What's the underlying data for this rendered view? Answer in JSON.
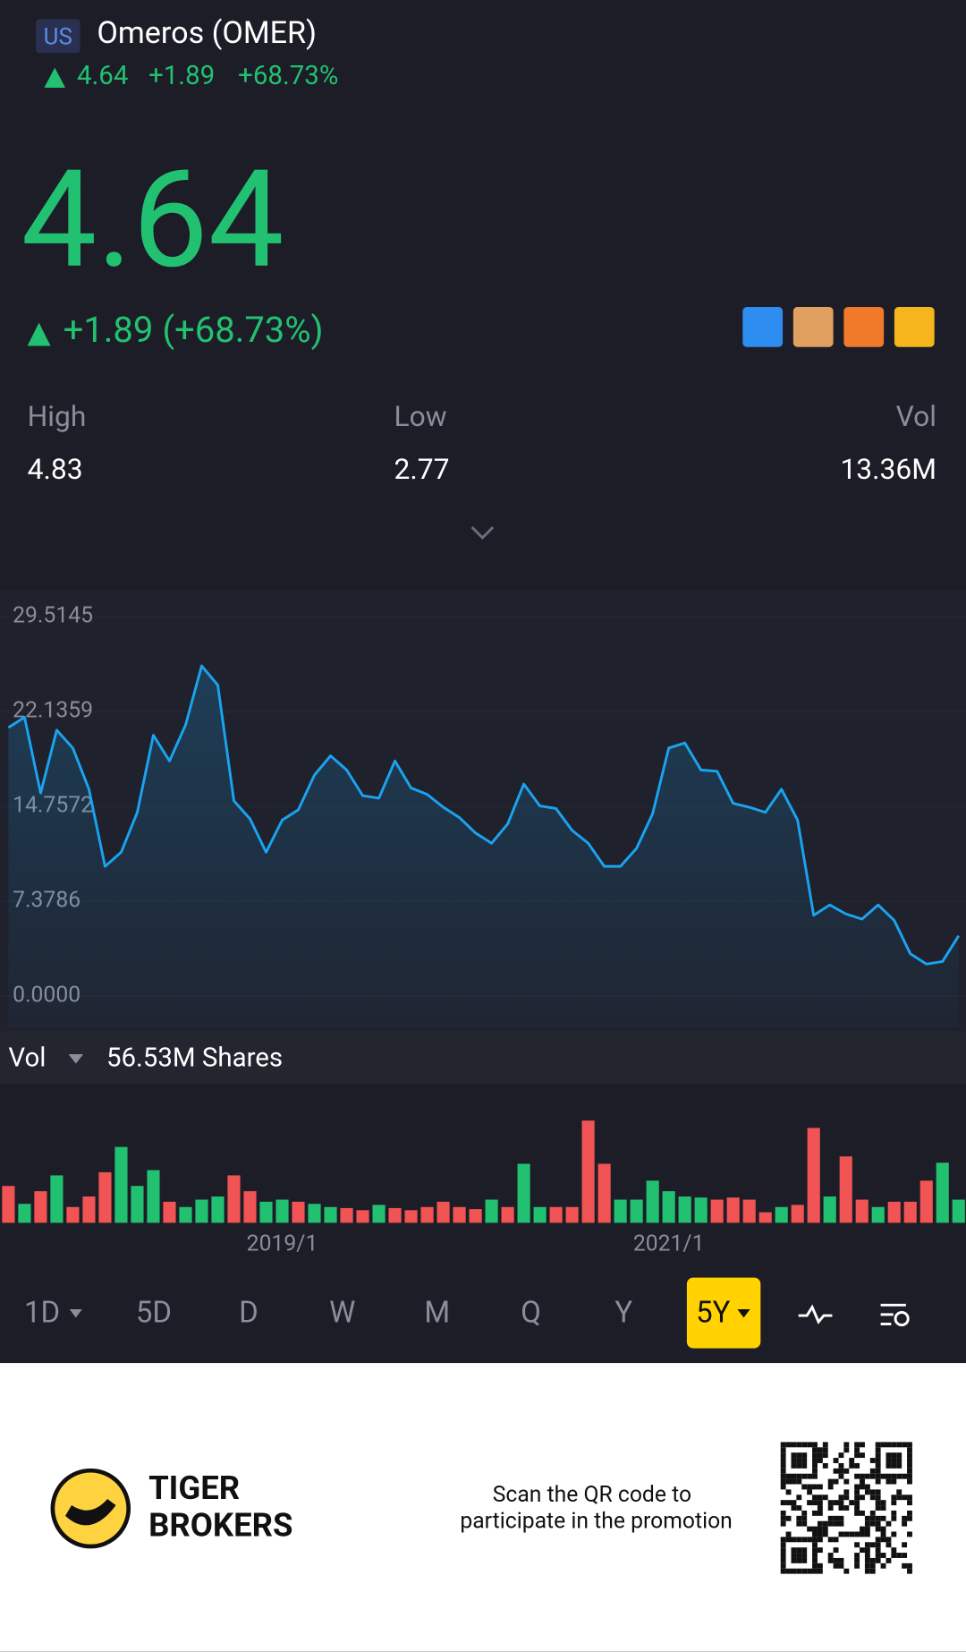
{
  "header": {
    "market": "US",
    "name": "Omeros (OMER)",
    "price": "4.64",
    "change": "+1.89",
    "percent": "+68.73%"
  },
  "quote": {
    "price": "4.64",
    "change": "+1.89 (+68.73%)"
  },
  "stats": [
    {
      "label": "High",
      "value": "4.83"
    },
    {
      "label": "Low",
      "value": "2.77"
    },
    {
      "label": "Vol",
      "value": "13.36M"
    }
  ],
  "chart_data": {
    "type": "line",
    "color": "#1aa3f0",
    "categories": [
      null,
      null,
      null,
      null,
      null,
      null,
      null,
      null,
      null,
      null,
      null,
      null,
      null,
      null,
      null,
      null,
      null,
      "2019/1",
      null,
      null,
      null,
      null,
      null,
      null,
      null,
      null,
      null,
      null,
      null,
      null,
      null,
      null,
      null,
      null,
      null,
      null,
      null,
      null,
      null,
      null,
      null,
      "2021/1",
      null,
      null,
      null,
      null,
      null,
      null,
      null,
      null,
      null,
      null,
      null,
      null,
      null,
      null,
      null,
      null,
      null,
      null
    ],
    "values": [
      20.9,
      21.7,
      15.8,
      20.7,
      19.3,
      16.1,
      10.1,
      11.2,
      14.3,
      20.3,
      18.3,
      21.1,
      25.7,
      24.2,
      15.2,
      13.8,
      11.2,
      13.7,
      14.5,
      17.2,
      18.7,
      17.6,
      15.6,
      15.4,
      18.3,
      16.2,
      15.7,
      14.7,
      13.9,
      12.7,
      11.9,
      13.4,
      16.5,
      14.8,
      14.6,
      12.9,
      11.9,
      10.1,
      10.1,
      11.5,
      14.2,
      19.3,
      19.7,
      17.6,
      17.5,
      15.0,
      14.7,
      14.3,
      16.1,
      13.7,
      6.3,
      7.1,
      6.4,
      6.0,
      7.1,
      5.9,
      3.3,
      2.5,
      2.7,
      4.7
    ],
    "ylim": [
      0,
      29.5145
    ],
    "yticks": [
      {
        "value": 0,
        "label": "0.0000"
      },
      7.3786,
      14.7572,
      22.1359,
      29.5145
    ]
  },
  "volume": {
    "label": "Vol",
    "value": "56.53M Shares",
    "values": [
      35,
      18,
      30,
      45,
      15,
      25,
      48,
      72,
      35,
      50,
      20,
      15,
      22,
      25,
      45,
      30,
      20,
      22,
      20,
      18,
      15,
      14,
      12,
      17,
      14,
      12,
      15,
      20,
      15,
      13,
      22,
      15,
      56,
      15,
      15,
      15,
      97,
      56,
      22,
      22,
      40,
      30,
      25,
      24,
      22,
      24,
      22,
      10,
      15,
      17,
      90,
      25,
      63,
      22,
      15,
      20,
      20,
      40,
      57,
      22
    ],
    "colors": [
      "#f05454",
      "#22c172",
      "#f05454",
      "#22c172",
      "#f05454",
      "#f05454",
      "#f05454",
      "#22c172",
      "#22c172",
      "#22c172",
      "#f05454",
      "#22c172",
      "#22c172",
      "#22c172",
      "#f05454",
      "#f05454",
      "#22c172",
      "#22c172",
      "#f05454",
      "#22c172",
      "#22c172",
      "#f05454",
      "#f05454",
      "#22c172",
      "#f05454",
      "#f05454",
      "#f05454",
      "#f05454",
      "#f05454",
      "#f05454",
      "#22c172",
      "#f05454",
      "#22c172",
      "#22c172",
      "#f05454",
      "#f05454",
      "#f05454",
      "#f05454",
      "#22c172",
      "#22c172",
      "#22c172",
      "#22c172",
      "#22c172",
      "#22c172",
      "#f05454",
      "#f05454",
      "#f05454",
      "#f05454",
      "#22c172",
      "#f05454",
      "#f05454",
      "#22c172",
      "#f05454",
      "#f05454",
      "#22c172",
      "#f05454",
      "#f05454",
      "#f05454",
      "#22c172",
      "#22c172"
    ]
  },
  "tabs": {
    "items": [
      "1D",
      "5D",
      "D",
      "W",
      "M",
      "Q",
      "Y",
      "5Y"
    ],
    "active": 7
  },
  "footer": {
    "brand": [
      "TIGER",
      "BROKERS"
    ],
    "text": [
      "Scan the QR code to",
      "participate in the promotion"
    ]
  }
}
